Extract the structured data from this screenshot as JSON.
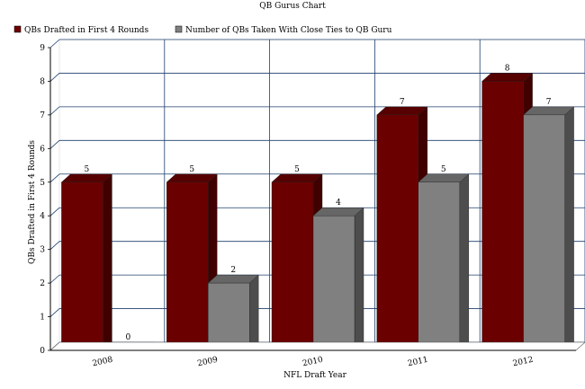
{
  "chart_data": {
    "type": "bar",
    "title": "QB Gurus Chart",
    "xlabel": "NFL Draft Year",
    "ylabel": "QBs Drafted in First 4 Rounds",
    "categories": [
      "2008",
      "2009",
      "2010",
      "2011",
      "2012"
    ],
    "series": [
      {
        "name": "QBs Drafted in First 4 Rounds",
        "values": [
          5,
          5,
          5,
          7,
          8
        ],
        "color": "#6b0000"
      },
      {
        "name": "Number of QBs Taken With Close Ties to QB Guru",
        "values": [
          0,
          2,
          4,
          5,
          7
        ],
        "color": "#808080"
      }
    ],
    "ylim": [
      0,
      9
    ],
    "yticks": [
      0,
      1,
      2,
      3,
      4,
      5,
      6,
      7,
      8,
      9
    ],
    "grid": true,
    "legend_position": "top-left",
    "style": "3d"
  }
}
